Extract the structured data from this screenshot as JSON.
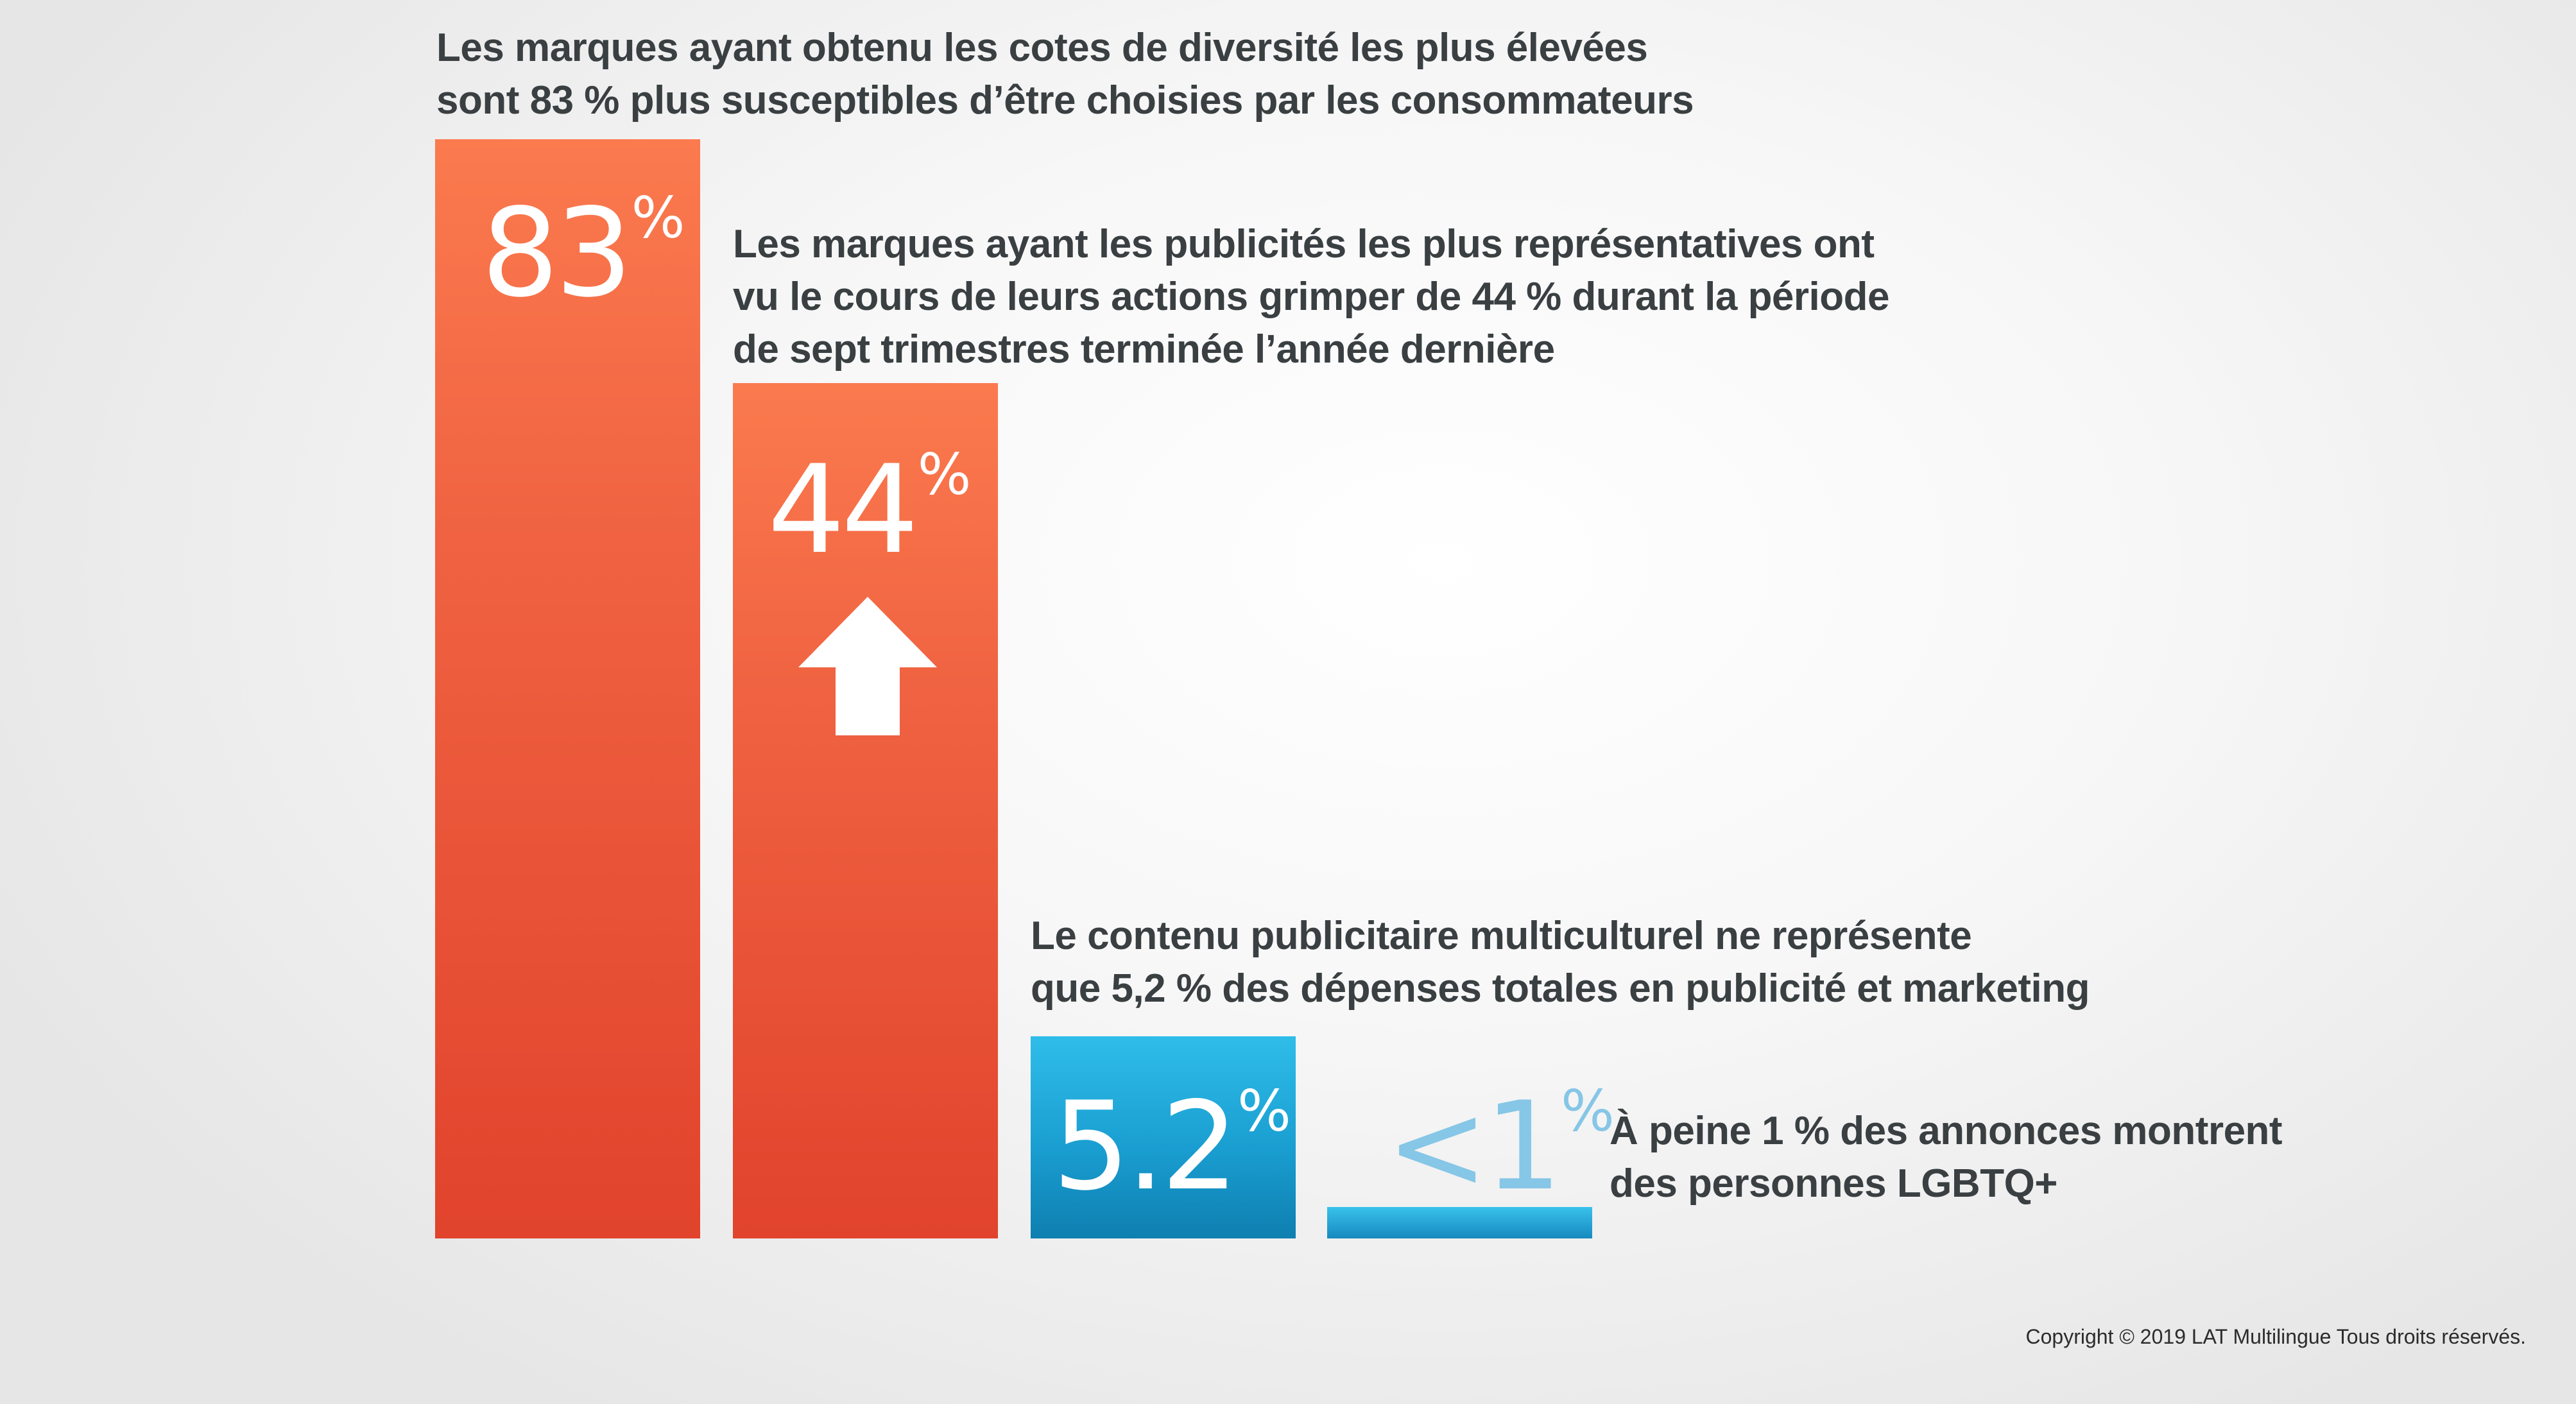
{
  "captions": {
    "c1": [
      "Les marques ayant obtenu les cotes de diversité les plus élevées",
      "sont 83 % plus susceptibles d’être choisies par les consommateurs"
    ],
    "c2": [
      "Les marques ayant les publicités les plus représentatives ont",
      "vu le cours de leurs actions grimper de 44 % durant la période",
      "de sept trimestres terminée l’année dernière"
    ],
    "c3": [
      "Le contenu publicitaire multiculturel ne représente",
      "que 5,2 % des dépenses totales en publicité et marketing"
    ],
    "c4": [
      "À peine 1 % des annonces montrent",
      "des personnes LGBTQ+"
    ]
  },
  "labels": {
    "v1": {
      "num": "83",
      "pct": "%"
    },
    "v2": {
      "num": "44",
      "pct": "%"
    },
    "v3": {
      "num": "5.2",
      "pct": "%"
    },
    "v4": {
      "num": "<1",
      "pct": "%"
    }
  },
  "copyright": "Copyright © 2019 LAT Multilingue Tous droits réservés.",
  "colors": {
    "orange_top": "#fb7a4e",
    "orange_bottom": "#e1432c",
    "blue_top": "#2fbde9",
    "blue_bottom": "#0e7fb0",
    "light_blue_label": "#86c6e6",
    "text": "#3a3f42"
  },
  "chart_data": {
    "type": "bar",
    "values": [
      83,
      44,
      5.2,
      1
    ],
    "value_labels": [
      "83%",
      "44%",
      "5.2%",
      "<1%"
    ],
    "bar_colors": [
      "orange",
      "orange",
      "blue",
      "blue"
    ],
    "annotations": [
      "up-arrow-icon on bar 2"
    ],
    "grid": false
  }
}
